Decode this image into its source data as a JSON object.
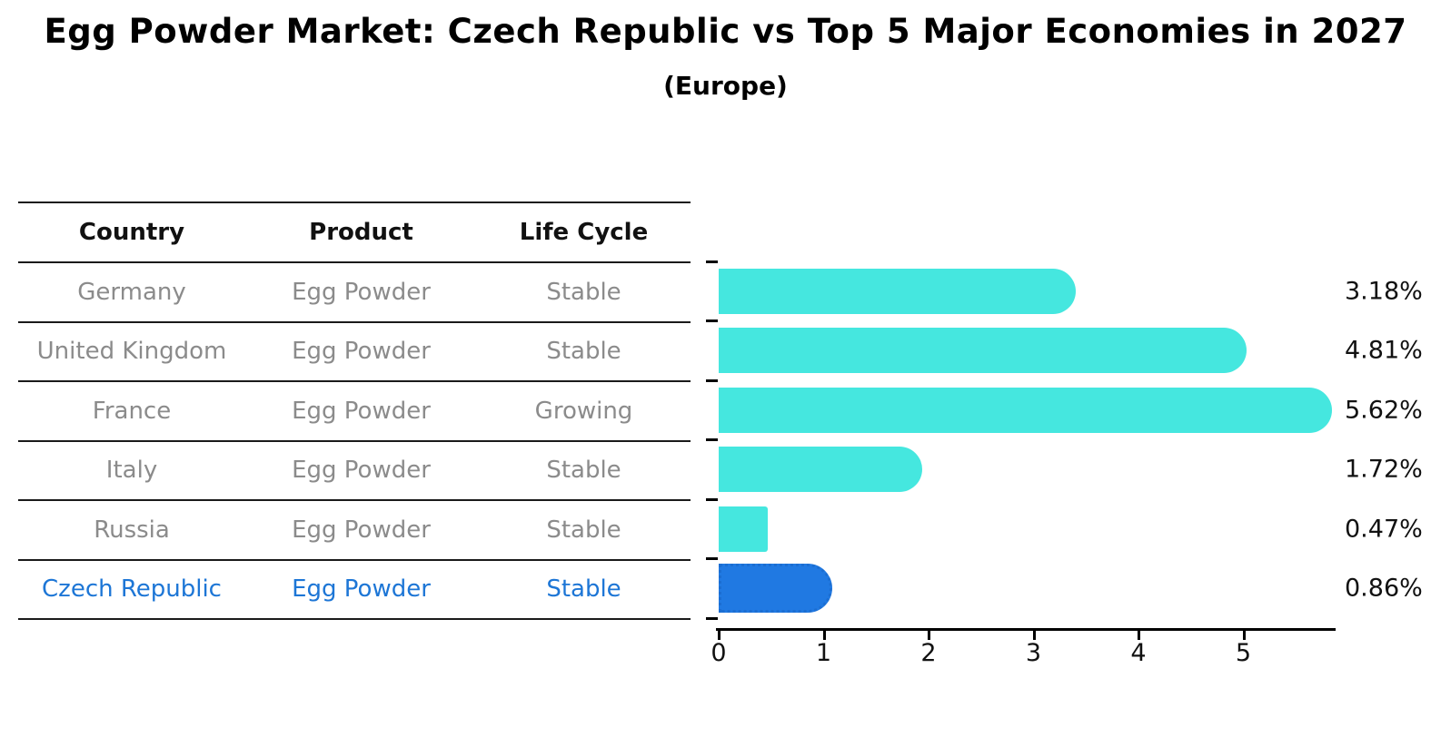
{
  "header": {
    "title": "Egg Powder Market: Czech Republic vs Top 5 Major Economies in 2027",
    "subtitle": "(Europe)"
  },
  "table": {
    "columns": [
      "Country",
      "Product",
      "Life Cycle"
    ],
    "rows": [
      {
        "country": "Germany",
        "product": "Egg Powder",
        "life_cycle": "Stable",
        "highlight": false
      },
      {
        "country": "United Kingdom",
        "product": "Egg Powder",
        "life_cycle": "Stable",
        "highlight": false
      },
      {
        "country": "France",
        "product": "Egg Powder",
        "life_cycle": "Growing",
        "highlight": false
      },
      {
        "country": "Italy",
        "product": "Egg Powder",
        "life_cycle": "Stable",
        "highlight": false
      },
      {
        "country": "Russia",
        "product": "Egg Powder",
        "life_cycle": "Stable",
        "highlight": false
      },
      {
        "country": "Czech Republic",
        "product": "Egg Powder",
        "life_cycle": "Stable",
        "highlight": true
      }
    ]
  },
  "chart_data": {
    "type": "bar",
    "orientation": "horizontal",
    "categories": [
      "Germany",
      "United Kingdom",
      "France",
      "Italy",
      "Russia",
      "Czech Republic"
    ],
    "values": [
      3.18,
      4.81,
      5.62,
      1.72,
      0.47,
      0.86
    ],
    "value_labels": [
      "3.18%",
      "4.81%",
      "5.62%",
      "1.72%",
      "0.47%",
      "0.86%"
    ],
    "highlight_index": 5,
    "x_ticks": [
      "0",
      "1",
      "2",
      "3",
      "4",
      "5"
    ],
    "xlim": [
      0,
      5.9
    ],
    "grid": false,
    "legend": "none",
    "bar_color": "#45E7DF",
    "highlight_color": "#2079E2",
    "title": "Egg Powder Market: Czech Republic vs Top 5 Major Economies in 2027",
    "xlabel": "",
    "ylabel": ""
  },
  "colors": {
    "bar": "#45E7DF",
    "highlight_bar": "#2079E2",
    "highlight_text": "#1d76d6",
    "table_text": "#8b8b8b",
    "axis": "#000000"
  }
}
